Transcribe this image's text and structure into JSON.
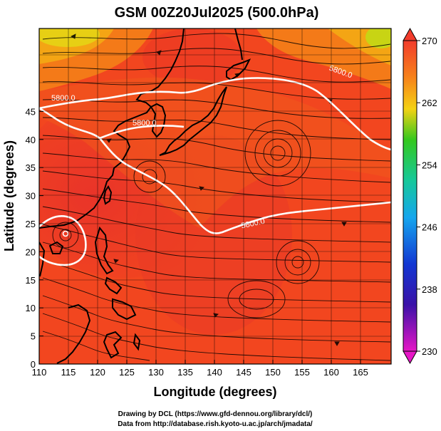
{
  "title": "GSM 00Z20Jul2025 (500.0hPa)",
  "xlabel": "Longitude (degrees)",
  "ylabel": "Latitude  (degrees)",
  "x_ticks": [
    "110",
    "115",
    "120",
    "125",
    "130",
    "135",
    "140",
    "145",
    "150",
    "155",
    "160",
    "165"
  ],
  "y_ticks": [
    "0",
    "5",
    "10",
    "15",
    "20",
    "25",
    "30",
    "35",
    "40",
    "45"
  ],
  "colorbar": {
    "ticks": [
      "270",
      "262",
      "254",
      "246",
      "238",
      "230"
    ],
    "min": 230,
    "max": 270
  },
  "contour_labels": [
    "5800.0",
    "5800.0",
    "5800.0",
    "5800.0"
  ],
  "credit_lines": [
    "Drawing by DCL (https://www.gfd-dennou.org/library/dcl/)",
    "Data from http://database.rish.kyoto-u.ac.jp/arch/jmadata/"
  ],
  "colors": {
    "field_warm": "#f2441e",
    "field_hot": "#e8322a",
    "field_orange": "#f47a18",
    "field_yellow": "#f0c40c",
    "contour": "#ffffff",
    "streamline": "#000000"
  }
}
